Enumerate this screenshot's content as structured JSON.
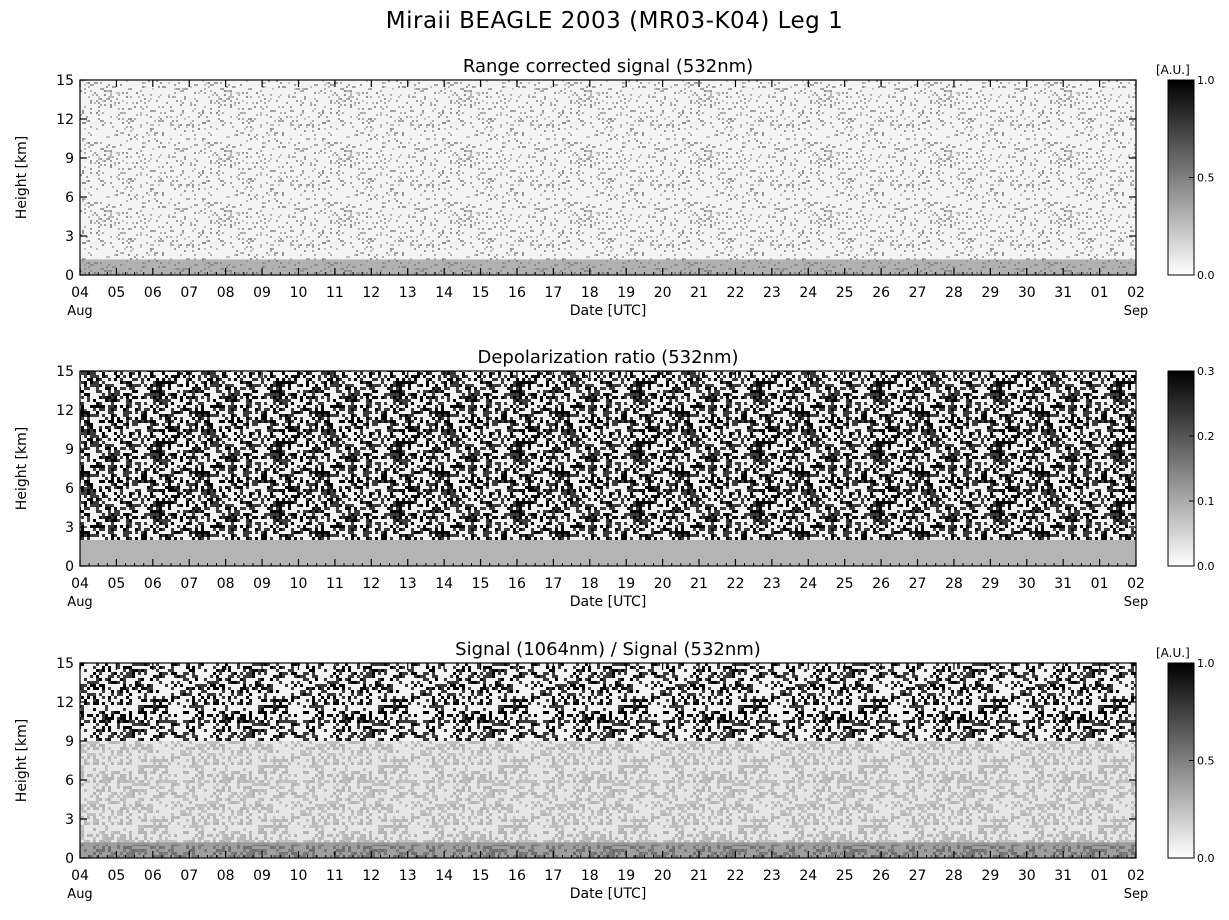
{
  "figure_title": "Miraii BEAGLE 2003 (MR03-K04) Leg 1",
  "chart_data": [
    {
      "type": "heatmap",
      "title": "Range corrected signal (532nm)",
      "xlabel": "Date [UTC]",
      "ylabel": "Height [km]",
      "xticks": [
        "04",
        "05",
        "06",
        "07",
        "08",
        "09",
        "10",
        "11",
        "12",
        "13",
        "14",
        "15",
        "16",
        "17",
        "18",
        "19",
        "20",
        "21",
        "22",
        "23",
        "24",
        "25",
        "26",
        "27",
        "28",
        "29",
        "30",
        "31",
        "01",
        "02"
      ],
      "x_start_label": "Aug",
      "x_end_label": "Sep",
      "yticks": [
        0,
        3,
        6,
        9,
        12,
        15
      ],
      "ylim": [
        0,
        15
      ],
      "colorbar": {
        "label": "[A.U.]",
        "ticks": [
          "0.0",
          "0.5",
          "1.0"
        ],
        "range": [
          0,
          1
        ]
      },
      "colormap": "white-to-black"
    },
    {
      "type": "heatmap",
      "title": "Depolarization ratio (532nm)",
      "xlabel": "Date [UTC]",
      "ylabel": "Height [km]",
      "xticks": [
        "04",
        "05",
        "06",
        "07",
        "08",
        "09",
        "10",
        "11",
        "12",
        "13",
        "14",
        "15",
        "16",
        "17",
        "18",
        "19",
        "20",
        "21",
        "22",
        "23",
        "24",
        "25",
        "26",
        "27",
        "28",
        "29",
        "30",
        "31",
        "01",
        "02"
      ],
      "x_start_label": "Aug",
      "x_end_label": "Sep",
      "yticks": [
        0,
        3,
        6,
        9,
        12,
        15
      ],
      "ylim": [
        0,
        15
      ],
      "colorbar": {
        "label": "",
        "ticks": [
          "0.0",
          "0.1",
          "0.2",
          "0.3"
        ],
        "range": [
          0,
          0.3
        ]
      },
      "colormap": "white-to-black"
    },
    {
      "type": "heatmap",
      "title": "Signal (1064nm) / Signal (532nm)",
      "xlabel": "Date [UTC]",
      "ylabel": "Height [km]",
      "xticks": [
        "04",
        "05",
        "06",
        "07",
        "08",
        "09",
        "10",
        "11",
        "12",
        "13",
        "14",
        "15",
        "16",
        "17",
        "18",
        "19",
        "20",
        "21",
        "22",
        "23",
        "24",
        "25",
        "26",
        "27",
        "28",
        "29",
        "30",
        "31",
        "01",
        "02"
      ],
      "x_start_label": "Aug",
      "x_end_label": "Sep",
      "yticks": [
        0,
        3,
        6,
        9,
        12,
        15
      ],
      "ylim": [
        0,
        15
      ],
      "colorbar": {
        "label": "[A.U.]",
        "ticks": [
          "0.0",
          "0.5",
          "1.0"
        ],
        "range": [
          0,
          1
        ]
      },
      "colormap": "white-to-black"
    }
  ]
}
